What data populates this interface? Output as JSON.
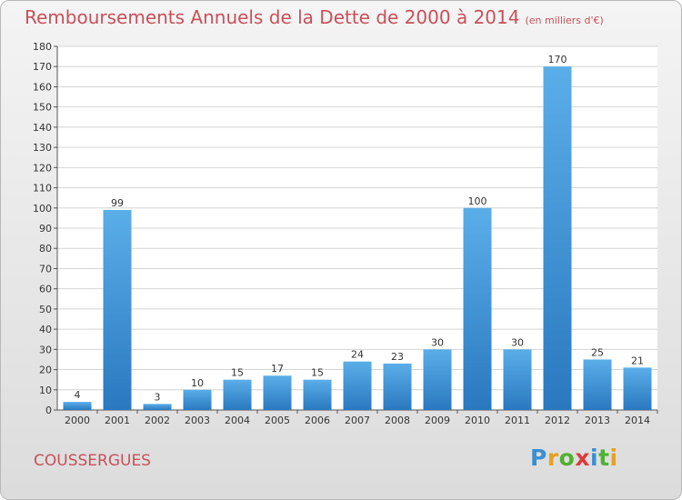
{
  "chart_title": "Remboursements Annuels de la Dette de 2000 à 2014",
  "chart_subtitle": "(en milliers d'€)",
  "place_name": "COUSSERGUES",
  "logo_text": "Proxiti",
  "colors": {
    "bar_top": "#5aaee8",
    "bar_bottom": "#2a78c0",
    "title": "#c8505a",
    "grid": "#d4d4d4"
  },
  "chart_data": {
    "type": "bar",
    "title": "Remboursements Annuels de la Dette de 2000 à 2014",
    "subtitle": "(en milliers d'€)",
    "categories": [
      "2000",
      "2001",
      "2002",
      "2003",
      "2004",
      "2005",
      "2006",
      "2007",
      "2008",
      "2009",
      "2010",
      "2011",
      "2012",
      "2013",
      "2014"
    ],
    "values": [
      4,
      99,
      3,
      10,
      15,
      17,
      15,
      24,
      23,
      30,
      100,
      30,
      170,
      25,
      21
    ],
    "ylim": [
      0,
      180
    ],
    "yticks": [
      0,
      10,
      20,
      30,
      40,
      50,
      60,
      70,
      80,
      90,
      100,
      110,
      120,
      130,
      140,
      150,
      160,
      170,
      180
    ],
    "grid": true,
    "data_labels": true,
    "legend": "none"
  }
}
